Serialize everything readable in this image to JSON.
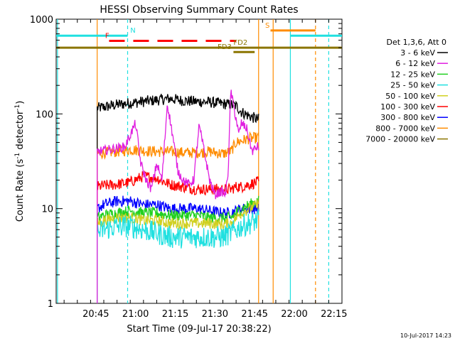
{
  "chart_data": {
    "type": "line",
    "title": "HESSI Observing Summary Count Rates",
    "xlabel": "Start Time (09-Jul-17 20:38:22)",
    "ylabel_main": "Count Rate (s",
    "ylabel_sup1": "-1",
    "ylabel_mid": " detector",
    "ylabel_sup2": "-1",
    "ylabel_end": ")",
    "y_scale": "log",
    "ylim": [
      1,
      1000
    ],
    "xlim_minutes": [
      -8,
      100
    ],
    "x_ticks": [
      {
        "min": 7,
        "label": "20:45"
      },
      {
        "min": 22,
        "label": "21:00"
      },
      {
        "min": 37,
        "label": "21:15"
      },
      {
        "min": 52,
        "label": "21:30"
      },
      {
        "min": 67,
        "label": "21:45"
      },
      {
        "min": 82,
        "label": "22:00"
      },
      {
        "min": 97,
        "label": "22:15"
      }
    ],
    "y_ticks": [
      {
        "value": 1,
        "label": "1"
      },
      {
        "value": 10,
        "label": "10"
      },
      {
        "value": 100,
        "label": "100"
      },
      {
        "value": 1000,
        "label": "1000"
      }
    ],
    "legend": {
      "placement": "right",
      "header": "Det 1,3,6, Att 0",
      "entries": [
        {
          "label": "3 - 6 keV",
          "color": "#000000"
        },
        {
          "label": "6 - 12 keV",
          "color": "#e020e0"
        },
        {
          "label": "12 - 25 keV",
          "color": "#20d020"
        },
        {
          "label": "25 - 50 keV",
          "color": "#20e0e0"
        },
        {
          "label": "50 - 100 keV",
          "color": "#d0d020"
        },
        {
          "label": "100 - 300 keV",
          "color": "#ff0000"
        },
        {
          "label": "300 - 800 keV",
          "color": "#0000ff"
        },
        {
          "label": "800 - 7000 keV",
          "color": "#ff8c00"
        },
        {
          "label": "7000 - 20000 keV",
          "color": "#8b7500"
        }
      ]
    },
    "series_start_min": 7.5,
    "series_end_min": 68.5,
    "series": [
      {
        "color": "#000000",
        "t": [
          7.5,
          10,
          15,
          20,
          25,
          30,
          35,
          40,
          45,
          50,
          55,
          58,
          60,
          62,
          65,
          68
        ],
        "v": [
          115,
          118,
          125,
          130,
          135,
          140,
          145,
          138,
          135,
          133,
          128,
          125,
          122,
          105,
          95,
          88
        ]
      },
      {
        "color": "#ff8c00",
        "t": [
          7.5,
          10,
          15,
          20,
          25,
          30,
          35,
          40,
          45,
          50,
          55,
          58,
          60,
          62,
          65,
          68
        ],
        "v": [
          38,
          39,
          40,
          42,
          41,
          40,
          40,
          39,
          39,
          40,
          38,
          40,
          50,
          52,
          55,
          56
        ]
      },
      {
        "color": "#ff0000",
        "t": [
          7.5,
          10,
          15,
          20,
          25,
          30,
          35,
          40,
          45,
          50,
          55,
          58,
          60,
          62,
          65,
          68
        ],
        "v": [
          17,
          17.5,
          18,
          19,
          22,
          21,
          18,
          17,
          16,
          16,
          16,
          16,
          17,
          17,
          18,
          19
        ]
      },
      {
        "color": "#0000ff",
        "t": [
          7.5,
          10,
          15,
          20,
          25,
          30,
          35,
          40,
          45,
          50,
          55,
          58,
          60,
          62,
          65,
          68
        ],
        "v": [
          10,
          11,
          12,
          12,
          11,
          11,
          10,
          10,
          10,
          9.5,
          9,
          9,
          9.5,
          10,
          10,
          10
        ]
      },
      {
        "color": "#20d020",
        "t": [
          7.5,
          10,
          15,
          20,
          25,
          30,
          35,
          40,
          45,
          50,
          55,
          58,
          60,
          62,
          65,
          68
        ],
        "v": [
          8,
          8.5,
          9,
          9.5,
          9,
          9,
          8.5,
          8.5,
          8.5,
          8,
          8,
          8,
          9,
          10,
          11,
          12
        ]
      },
      {
        "color": "#d0d020",
        "t": [
          7.5,
          10,
          15,
          20,
          25,
          30,
          35,
          40,
          45,
          50,
          55,
          58,
          60,
          62,
          65,
          68
        ],
        "v": [
          7,
          7.5,
          8,
          8,
          7.5,
          7.5,
          7,
          7,
          7,
          7,
          6.8,
          7,
          8,
          9,
          10,
          11
        ]
      },
      {
        "color": "#20e0e0",
        "t": [
          7.5,
          10,
          15,
          20,
          25,
          30,
          35,
          40,
          45,
          50,
          55,
          58,
          60,
          62,
          65,
          68
        ],
        "v": [
          5.5,
          6,
          6.5,
          6.5,
          6,
          5.5,
          5,
          5,
          5,
          5,
          5,
          5.5,
          6,
          6.5,
          7,
          7.5
        ]
      },
      {
        "color": "#e020e0",
        "t": [
          7.5,
          12,
          18,
          20,
          22,
          24,
          26,
          28,
          30,
          32,
          34,
          36,
          38,
          40,
          42,
          44,
          46,
          48,
          50,
          52,
          54,
          55,
          56,
          57,
          58,
          59,
          60,
          61,
          62,
          64,
          66,
          68
        ],
        "v": [
          40,
          42,
          45,
          60,
          80,
          30,
          20,
          16,
          30,
          20,
          130,
          60,
          25,
          20,
          18,
          20,
          75,
          40,
          20,
          14,
          15,
          15,
          14,
          25,
          180,
          120,
          90,
          60,
          80,
          70,
          40,
          45
        ]
      }
    ],
    "annotations": {
      "N_label": "N",
      "F_label": "F",
      "S_label": "S",
      "FD2_label": "FD2",
      "FD3_label": "FD3"
    },
    "bars": [
      {
        "color": "#20e0e0",
        "ypos_value": 670,
        "segments": [
          [
            -8,
            19
          ],
          [
            80.5,
            100
          ]
        ],
        "dash": "solid",
        "label_key": "N",
        "label_at_min": 20
      },
      {
        "color": "#ff0000",
        "ypos_value": 590,
        "segments": [
          [
            12,
            60
          ]
        ],
        "dash": "dashed",
        "label_key": "F",
        "label_at_min": 10.5
      },
      {
        "color": "#ff8c00",
        "ypos_value": 760,
        "segments": [
          [
            73,
            90
          ]
        ],
        "dash": "solid",
        "label_key": "S",
        "label_at_min": 71
      },
      {
        "color": "#8b7500",
        "ypos_value": 500,
        "segments": [
          [
            -8,
            100
          ]
        ],
        "dash": "solid",
        "label_key": "FD2",
        "label_at_min": 59
      },
      {
        "color": "#8b7500",
        "ypos_value": 450,
        "segments": [
          [
            59,
            67
          ]
        ],
        "dash": "solid",
        "label_key": "FD3",
        "label_at_min": 53
      }
    ],
    "vlines": [
      {
        "min": -7.5,
        "color": "#20e0e0",
        "dash": "solid"
      },
      {
        "min": 7.5,
        "color": "#ff8c00",
        "dash": "solid"
      },
      {
        "min": 19,
        "color": "#20e0e0",
        "dash": "dashed"
      },
      {
        "min": 68.5,
        "color": "#ff8c00",
        "dash": "solid"
      },
      {
        "min": 74,
        "color": "#ff8c00",
        "dash": "solid"
      },
      {
        "min": 80.5,
        "color": "#20e0e0",
        "dash": "solid"
      },
      {
        "min": 90,
        "color": "#ff8c00",
        "dash": "dashed"
      },
      {
        "min": 95,
        "color": "#20e0e0",
        "dash": "dashed"
      }
    ],
    "footer_date": "10-Jul-2017 14:23"
  }
}
